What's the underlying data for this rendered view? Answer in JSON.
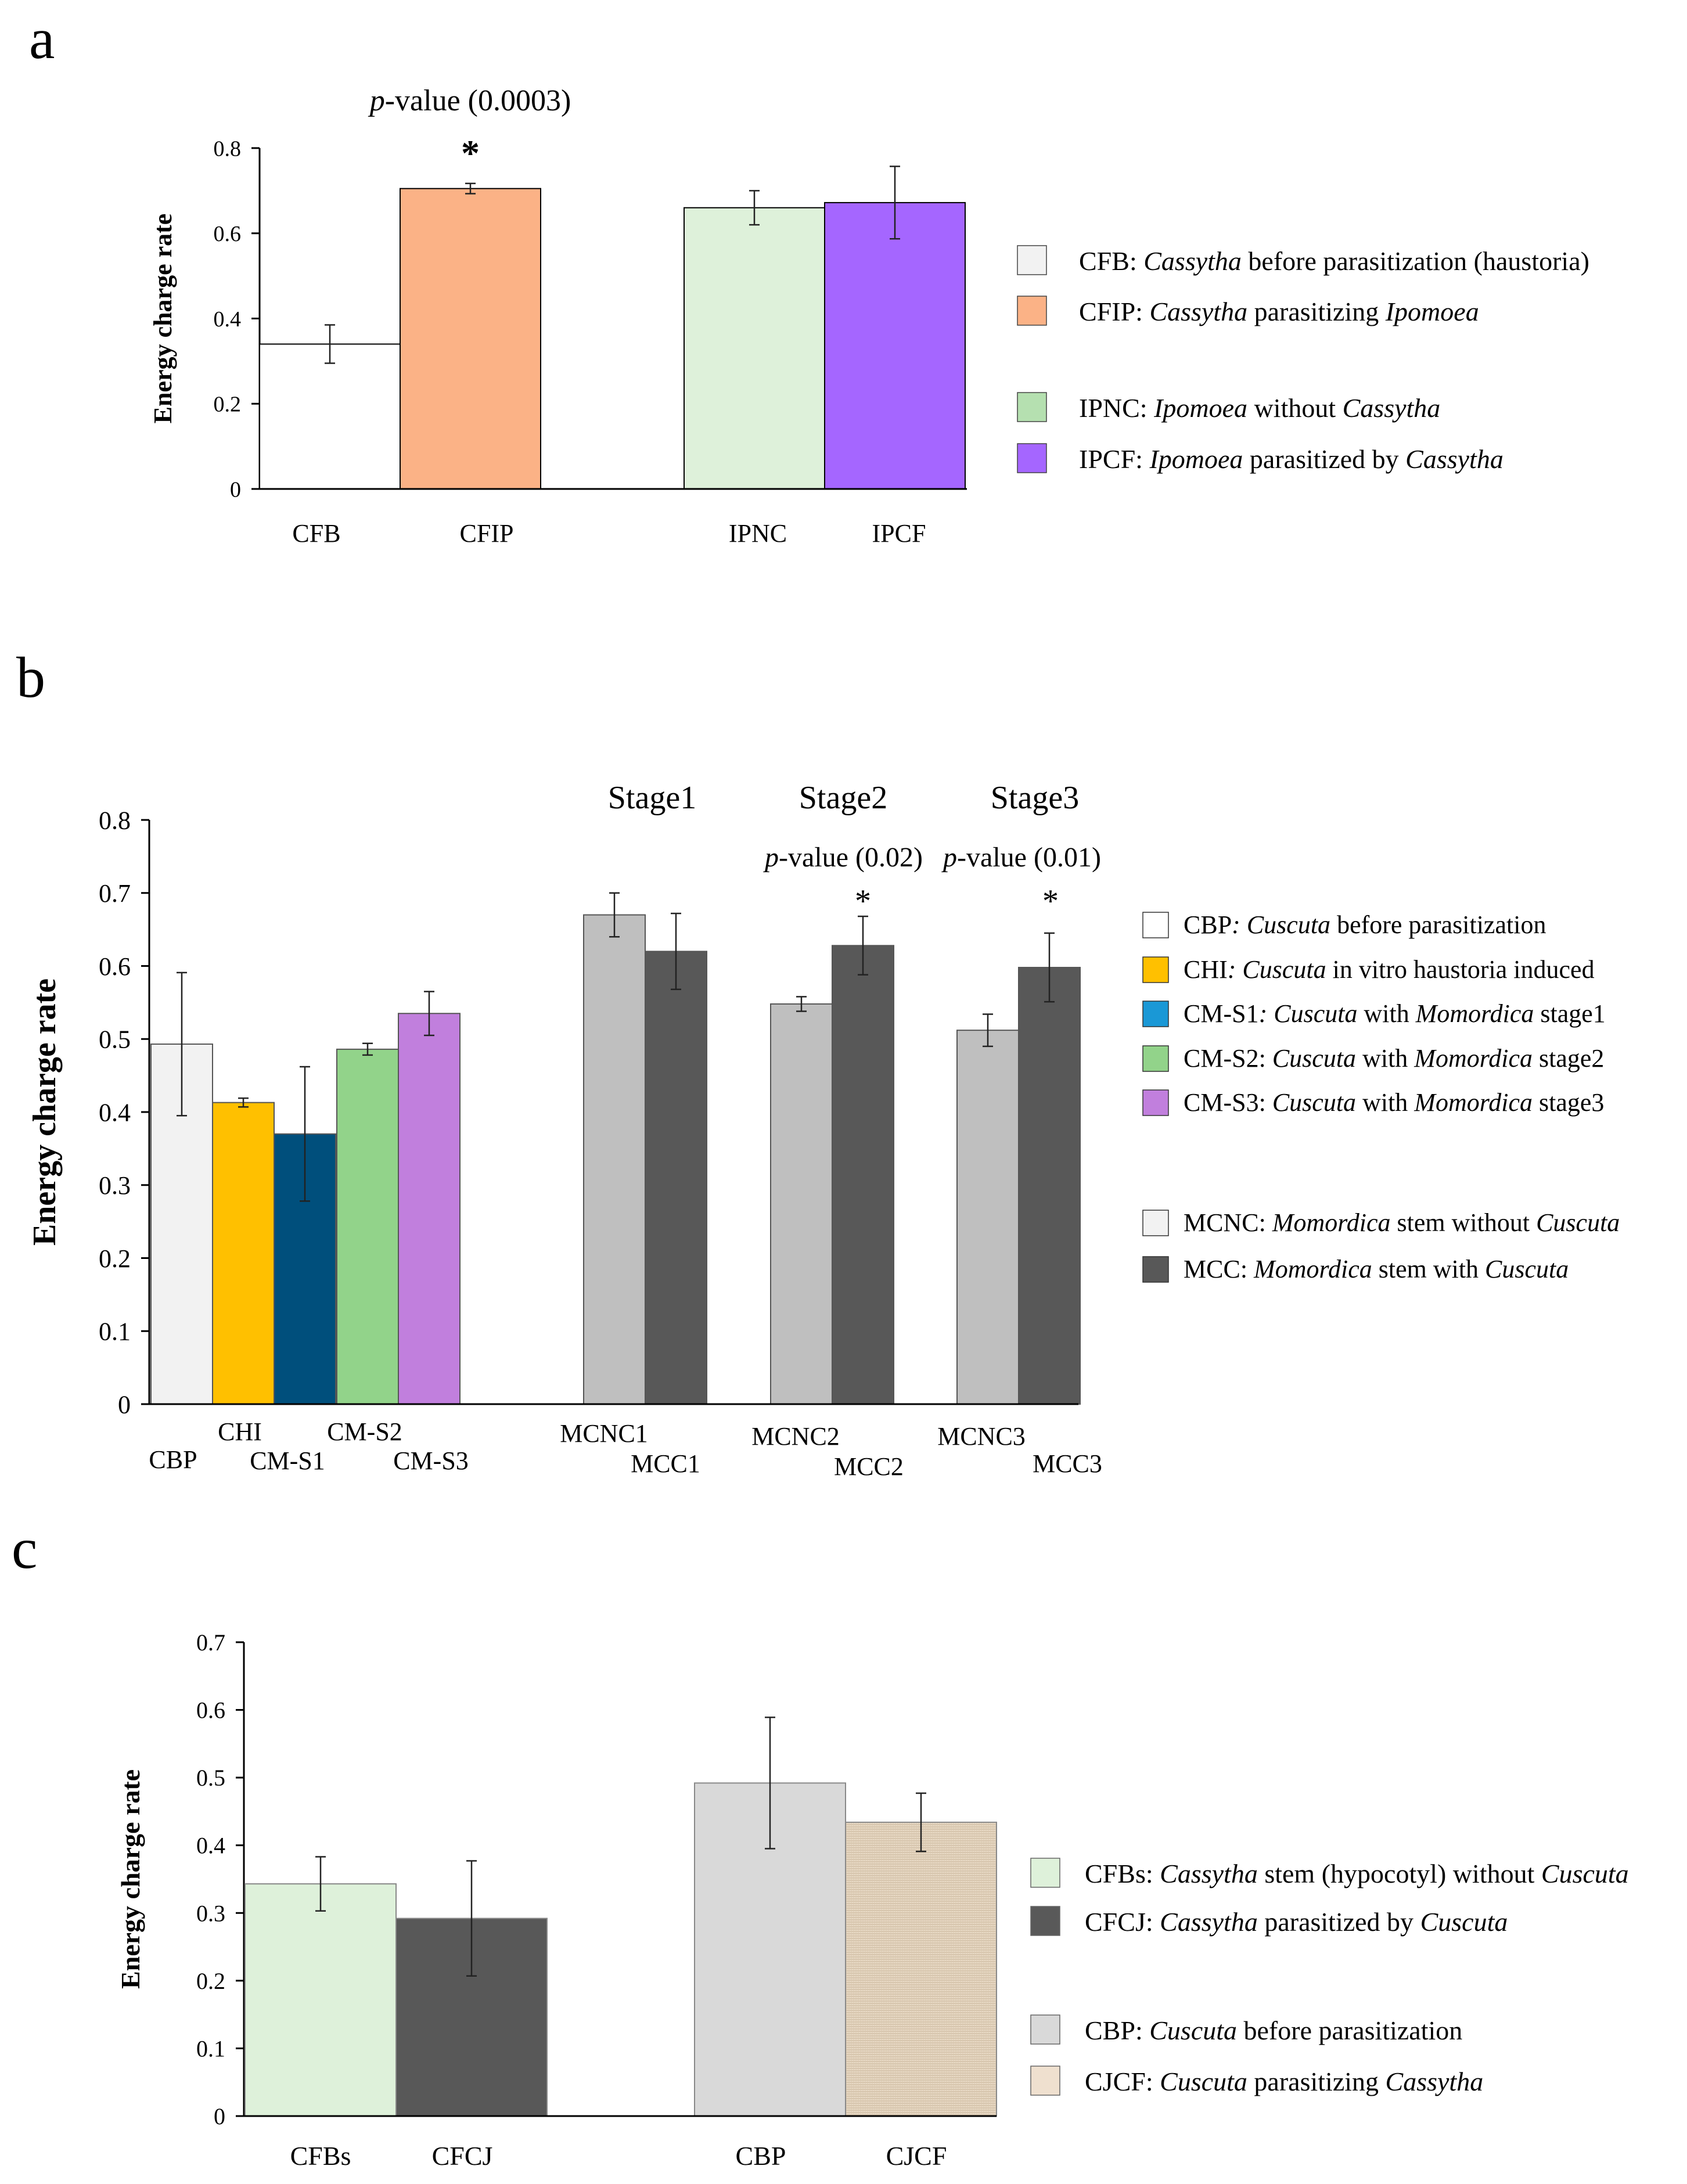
{
  "chart_data": [
    {
      "panel": "a",
      "type": "bar",
      "ylabel": "Energy charge rate",
      "ylim": [
        0,
        0.8
      ],
      "yticks": [
        "0",
        "0.2",
        "0.4",
        "0.6",
        "0.8"
      ],
      "tick_step": 0.2,
      "annotations": [
        {
          "text": "p-value (0.0003)",
          "italic_prefix": "p",
          "rest": "-value (0.0003)",
          "above": "CFIP"
        },
        {
          "text": "*",
          "above": "CFIP"
        }
      ],
      "bars": [
        {
          "category": "CFB",
          "value": 0.34,
          "error": 0.045,
          "color": "#ffffff"
        },
        {
          "category": "CFIP",
          "value": 0.705,
          "error": 0.012,
          "color": "#fbb286"
        },
        {
          "category": "IPNC",
          "value": 0.66,
          "error": 0.04,
          "color": "#def1da"
        },
        {
          "category": "IPCF",
          "value": 0.672,
          "error": 0.085,
          "color": "#a566ff"
        }
      ],
      "legend": [
        {
          "key": "CFB",
          "parts": [
            [
              "CFB:  ",
              false
            ],
            [
              "Cassytha",
              true
            ],
            [
              " before parasitization (haustoria)",
              false
            ]
          ],
          "color": "#f2f2f2"
        },
        {
          "key": "CFIP",
          "parts": [
            [
              "CFIP:  ",
              false
            ],
            [
              "Cassytha",
              true
            ],
            [
              " parasitizing ",
              false
            ],
            [
              "Ipomoea",
              true
            ]
          ],
          "color": "#fbb286"
        },
        {
          "key": "IPNC",
          "parts": [
            [
              "IPNC:  ",
              false
            ],
            [
              "Ipomoea",
              true
            ],
            [
              " without ",
              false
            ],
            [
              "Cassytha",
              true
            ]
          ],
          "color": "#b5e0b0"
        },
        {
          "key": "IPCF",
          "parts": [
            [
              "IPCF:  ",
              false
            ],
            [
              "Ipomoea",
              true
            ],
            [
              " parasitized by ",
              false
            ],
            [
              "Cassytha",
              true
            ]
          ],
          "color": "#a566ff"
        }
      ]
    },
    {
      "panel": "b",
      "type": "bar",
      "ylabel": "Energy charge rate",
      "ylim": [
        0,
        0.8
      ],
      "yticks": [
        "0",
        "0.1",
        "0.2",
        "0.3",
        "0.4",
        "0.5",
        "0.6",
        "0.7",
        "0.8"
      ],
      "tick_step": 0.1,
      "stage_labels": [
        "Stage1",
        "Stage2",
        "Stage3"
      ],
      "annotations": [
        {
          "text": "p-value (0.02)",
          "italic_prefix": "p",
          "rest": "-value (0.02)",
          "above": "MCC2"
        },
        {
          "text": "p-value (0.01)",
          "italic_prefix": "p",
          "rest": "-value (0.01)",
          "above": "MCC3"
        },
        {
          "text": "*",
          "above": "MCC2"
        },
        {
          "text": "*",
          "above": "MCC3"
        }
      ],
      "bars": [
        {
          "category": "CBP",
          "value": 0.493,
          "error": 0.098,
          "color": "#f2f2f2"
        },
        {
          "category": "CHI",
          "value": 0.413,
          "error": 0.006,
          "color": "#ffc000"
        },
        {
          "category": "CM-S1",
          "value": 0.37,
          "error": 0.092,
          "color": "#004f7c"
        },
        {
          "category": "CM-S2",
          "value": 0.486,
          "error": 0.008,
          "color": "#92d38a"
        },
        {
          "category": "CM-S3",
          "value": 0.535,
          "error": 0.03,
          "color": "#c17fdd"
        },
        {
          "category": "MCNC1",
          "value": 0.67,
          "error": 0.03,
          "color": "#bfbfbf"
        },
        {
          "category": "MCC1",
          "value": 0.62,
          "error": 0.052,
          "color": "#585858"
        },
        {
          "category": "MCNC2",
          "value": 0.548,
          "error": 0.01,
          "color": "#bfbfbf"
        },
        {
          "category": "MCC2",
          "value": 0.628,
          "error": 0.04,
          "color": "#585858"
        },
        {
          "category": "MCNC3",
          "value": 0.512,
          "error": 0.022,
          "color": "#bfbfbf"
        },
        {
          "category": "MCC3",
          "value": 0.598,
          "error": 0.047,
          "color": "#585858"
        }
      ],
      "legend": [
        {
          "key": "CBP",
          "parts": [
            [
              "CBP",
              false
            ],
            [
              ": Cuscuta",
              true
            ],
            [
              " before parasitization",
              false
            ]
          ],
          "color": "#ffffff"
        },
        {
          "key": "CHI",
          "parts": [
            [
              "CHI",
              false
            ],
            [
              ": Cuscuta",
              true
            ],
            [
              " in vitro haustoria induced",
              false
            ]
          ],
          "color": "#ffc000"
        },
        {
          "key": "CM-S1",
          "parts": [
            [
              "CM-S1",
              false
            ],
            [
              ": Cuscuta",
              true
            ],
            [
              " with ",
              false
            ],
            [
              "Momordica",
              true
            ],
            [
              " stage1",
              false
            ]
          ],
          "color": "#1a98d6"
        },
        {
          "key": "CM-S2",
          "parts": [
            [
              "CM-S2: ",
              false
            ],
            [
              "Cuscuta",
              true
            ],
            [
              " with ",
              false
            ],
            [
              "Momordica",
              true
            ],
            [
              " stage2",
              false
            ]
          ],
          "color": "#92d38a"
        },
        {
          "key": "CM-S3",
          "parts": [
            [
              "CM-S3: ",
              false
            ],
            [
              "Cuscuta",
              true
            ],
            [
              " with ",
              false
            ],
            [
              "Momordica",
              true
            ],
            [
              " stage3",
              false
            ]
          ],
          "color": "#c17fdd"
        },
        {
          "key": "MCNC",
          "parts": [
            [
              "MCNC: ",
              false
            ],
            [
              "Momordica",
              true
            ],
            [
              " stem without ",
              false
            ],
            [
              "Cuscuta",
              true
            ]
          ],
          "color": "#f2f2f2"
        },
        {
          "key": "MCC",
          "parts": [
            [
              "MCC: ",
              false
            ],
            [
              "Momordica",
              true
            ],
            [
              " stem with ",
              false
            ],
            [
              "Cuscuta",
              true
            ]
          ],
          "color": "#585858"
        }
      ]
    },
    {
      "panel": "c",
      "type": "bar",
      "ylabel": "Energy charge rate",
      "ylim": [
        0,
        0.7
      ],
      "yticks": [
        "0",
        "0.1",
        "0.2",
        "0.3",
        "0.4",
        "0.5",
        "0.6",
        "0.7"
      ],
      "tick_step": 0.1,
      "annotations": [],
      "bars": [
        {
          "category": "CFBs",
          "value": 0.343,
          "error": 0.04,
          "color": "#def1da"
        },
        {
          "category": "CFCJ",
          "value": 0.292,
          "error": 0.085,
          "color": "#585858"
        },
        {
          "category": "CBP",
          "value": 0.492,
          "error": 0.097,
          "color": "#d9d9d9"
        },
        {
          "category": "CJCF",
          "value": 0.434,
          "error": 0.043,
          "color": "#e6d6bf",
          "textured": true
        }
      ],
      "legend": [
        {
          "key": "CFBs",
          "parts": [
            [
              "CFBs:  ",
              false
            ],
            [
              "Cassytha",
              true
            ],
            [
              " stem (hypocotyl) without ",
              false
            ],
            [
              "Cuscuta",
              true
            ]
          ],
          "color": "#def1da"
        },
        {
          "key": "CFCJ",
          "parts": [
            [
              "CFCJ:  ",
              false
            ],
            [
              "Cassytha",
              true
            ],
            [
              " parasitized by ",
              false
            ],
            [
              "Cuscuta",
              true
            ]
          ],
          "color": "#595959"
        },
        {
          "key": "CBP",
          "parts": [
            [
              "CBP:  ",
              false
            ],
            [
              "Cuscuta",
              true
            ],
            [
              " before parasitization",
              false
            ]
          ],
          "color": "#d9d9d9"
        },
        {
          "key": "CJCF",
          "parts": [
            [
              "CJCF:  ",
              false
            ],
            [
              "Cuscuta",
              true
            ],
            [
              " parasitizing ",
              false
            ],
            [
              "Cassytha",
              true
            ]
          ],
          "color": "#efe0cf"
        }
      ]
    }
  ]
}
